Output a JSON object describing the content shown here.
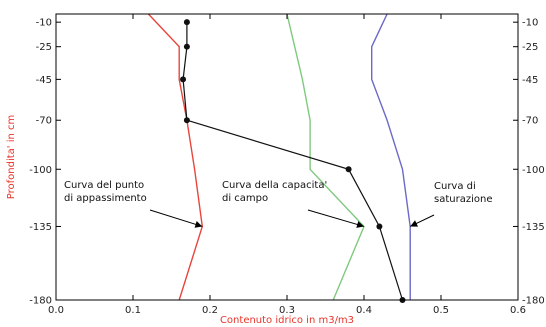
{
  "chart_data": {
    "type": "line",
    "xlabel": "Contenuto idrico in m3/m3",
    "ylabel": "Profondita' in cm",
    "xlim": [
      0.0,
      0.6
    ],
    "ylim": [
      -180,
      -5
    ],
    "x_ticks": [
      0.0,
      0.1,
      0.2,
      0.3,
      0.4,
      0.5,
      0.6
    ],
    "x_tick_labels": [
      "0.0",
      "0.1",
      "0.2",
      "0.3",
      "0.4",
      "0.5",
      "0.6"
    ],
    "y_ticks": [
      -10,
      -25,
      -45,
      -70,
      -100,
      -135,
      -180
    ],
    "y_tick_labels": [
      "-10",
      "-25",
      "-45",
      "-70",
      "-100",
      "-135",
      "-180"
    ],
    "right_y_tick_labels": [
      "-10",
      "-25",
      "-45",
      "-70",
      "-100",
      "-135",
      "-180"
    ],
    "grid": false,
    "series": [
      {
        "color": "#e8453c",
        "marker": false,
        "points": [
          [
            0.12,
            -5
          ],
          [
            0.16,
            -25
          ],
          [
            0.16,
            -45
          ],
          [
            0.17,
            -70
          ],
          [
            0.18,
            -100
          ],
          [
            0.19,
            -135
          ],
          [
            0.16,
            -180
          ]
        ]
      },
      {
        "color": "#7fc97f",
        "marker": false,
        "points": [
          [
            0.3,
            -5
          ],
          [
            0.31,
            -25
          ],
          [
            0.32,
            -45
          ],
          [
            0.33,
            -70
          ],
          [
            0.33,
            -100
          ],
          [
            0.4,
            -135
          ],
          [
            0.36,
            -180
          ]
        ]
      },
      {
        "color": "#6a6ac8",
        "marker": false,
        "points": [
          [
            0.43,
            -5
          ],
          [
            0.41,
            -25
          ],
          [
            0.41,
            -45
          ],
          [
            0.43,
            -70
          ],
          [
            0.45,
            -100
          ],
          [
            0.46,
            -135
          ],
          [
            0.46,
            -180
          ]
        ]
      },
      {
        "color": "#111111",
        "marker": true,
        "points": [
          [
            0.17,
            -10
          ],
          [
            0.17,
            -25
          ],
          [
            0.165,
            -45
          ],
          [
            0.17,
            -70
          ],
          [
            0.38,
            -100
          ],
          [
            0.42,
            -135
          ],
          [
            0.45,
            -180
          ]
        ]
      }
    ],
    "annotations": [
      {
        "lines": [
          "Curva del punto",
          "di appassimento"
        ],
        "arrow_to": [
          0.19,
          -135
        ]
      },
      {
        "lines": [
          "Curva della capacita'",
          "di campo"
        ],
        "arrow_to": [
          0.4,
          -135
        ]
      },
      {
        "lines": [
          "Curva di",
          "saturazione"
        ],
        "arrow_to": [
          0.46,
          -135
        ]
      }
    ]
  }
}
